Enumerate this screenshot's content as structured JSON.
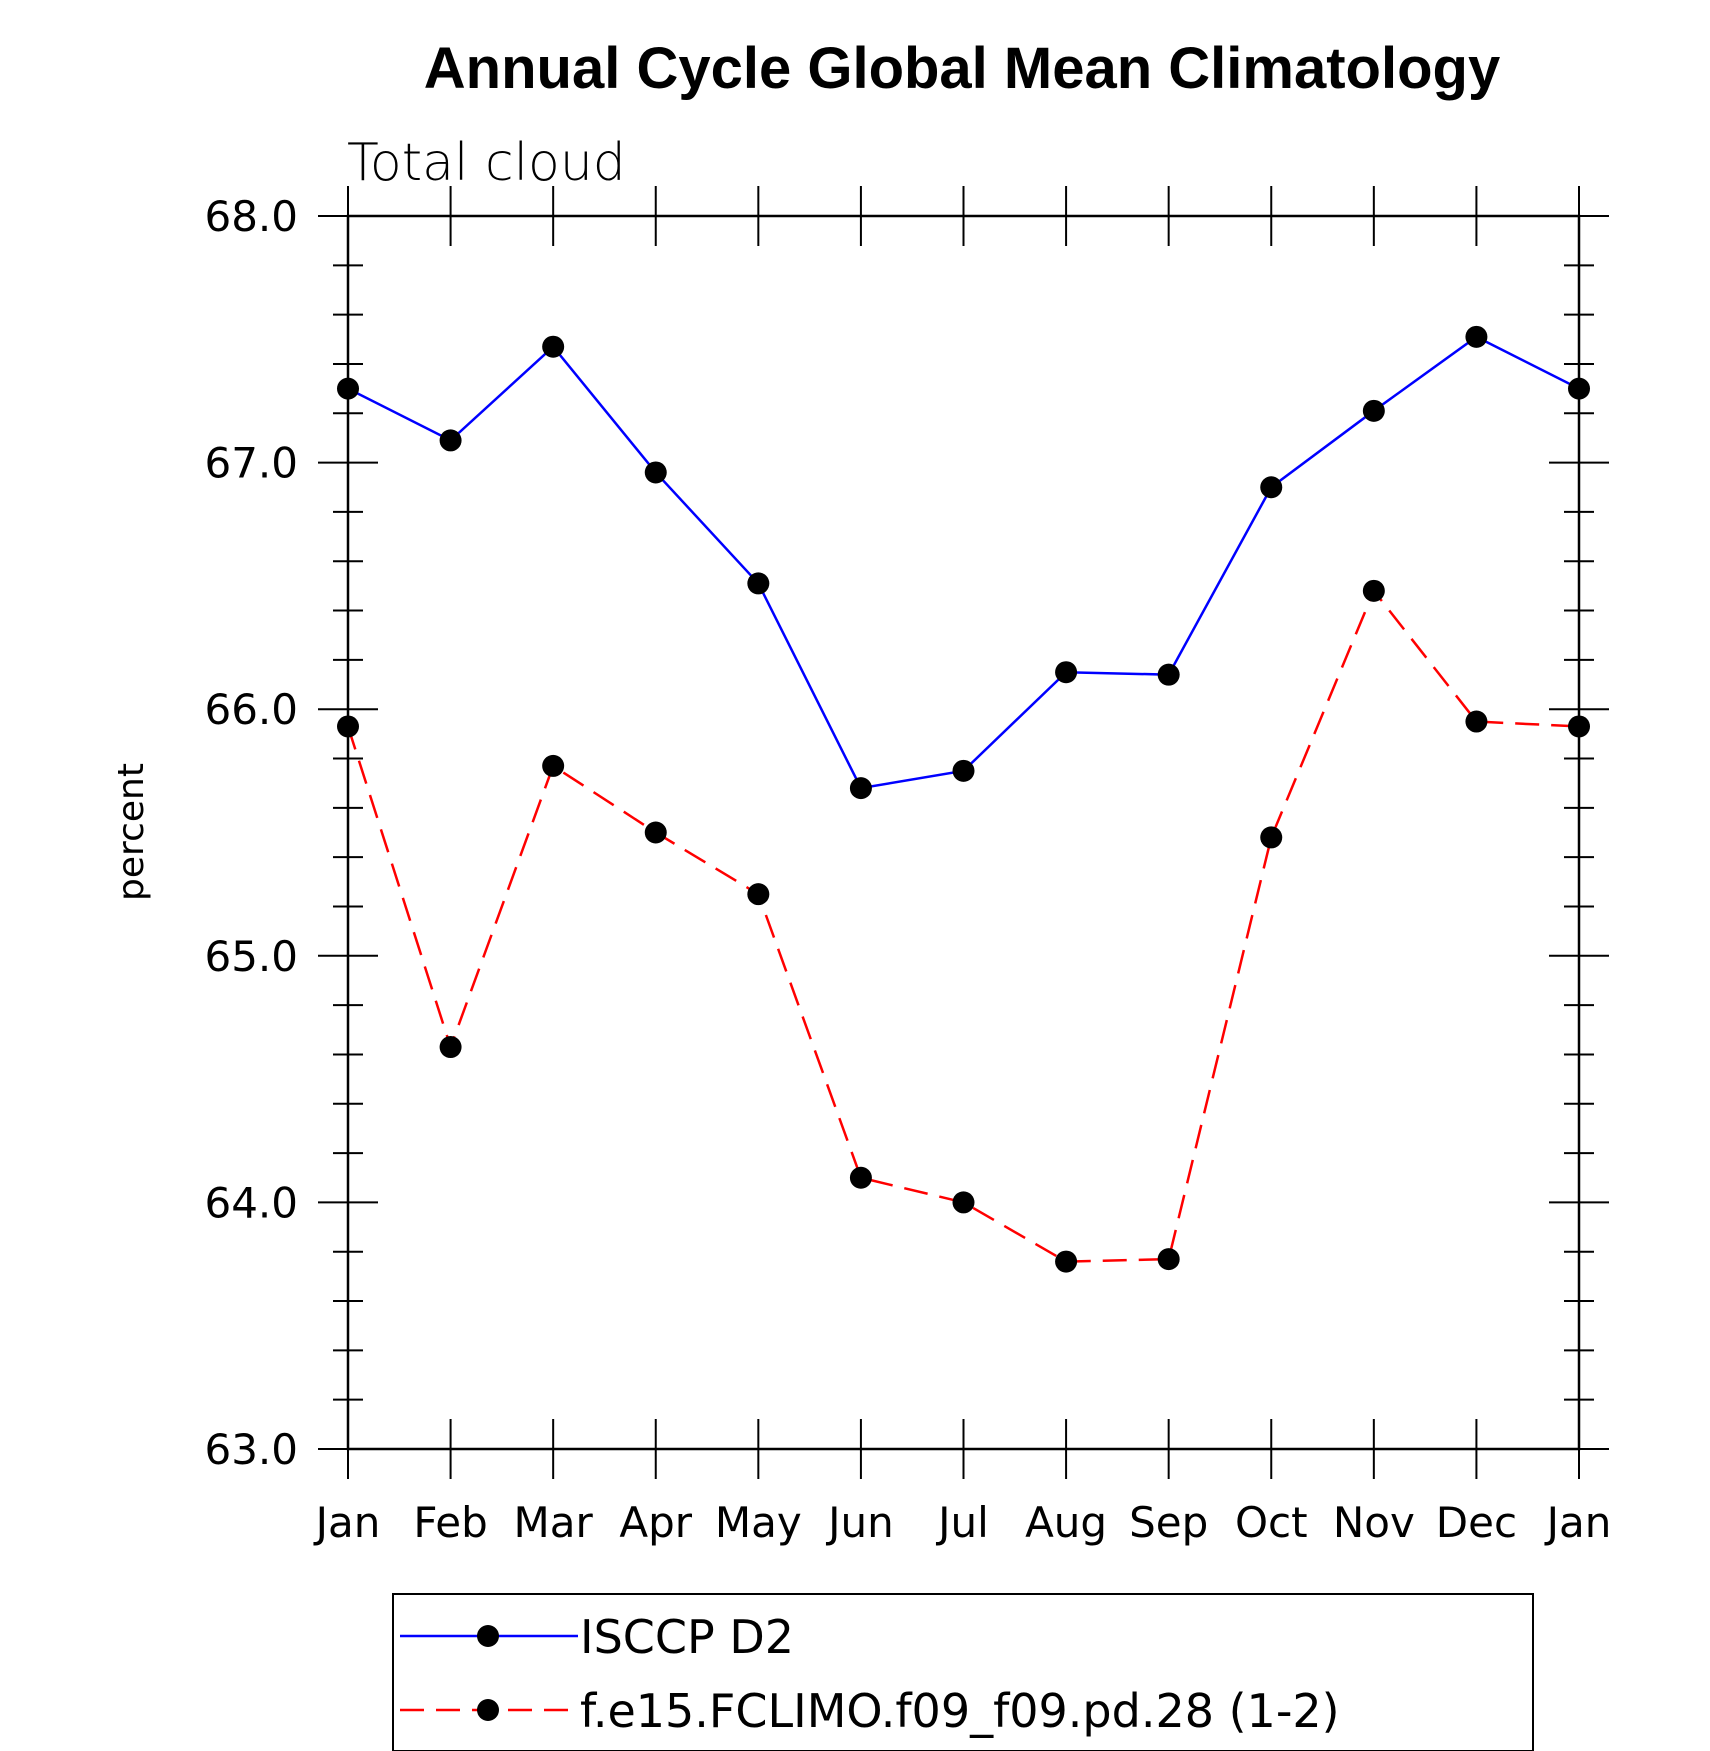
{
  "chart_data": {
    "type": "line",
    "title": "Annual Cycle Global Mean Climatology",
    "subtitle": "Total cloud",
    "xlabel": "",
    "ylabel": "percent",
    "categories": [
      "Jan",
      "Feb",
      "Mar",
      "Apr",
      "May",
      "Jun",
      "Jul",
      "Aug",
      "Sep",
      "Oct",
      "Nov",
      "Dec",
      "Jan"
    ],
    "ylim": [
      63.0,
      68.0
    ],
    "yticks": [
      "63.0",
      "64.0",
      "65.0",
      "66.0",
      "67.0",
      "68.0"
    ],
    "grid": false,
    "legend_position": "bottom",
    "series": [
      {
        "name": "ISCCP D2",
        "color": "#0000ff",
        "dash": "solid",
        "values": [
          67.3,
          67.09,
          67.47,
          66.96,
          66.51,
          65.68,
          65.75,
          66.15,
          66.14,
          66.9,
          67.21,
          67.51,
          67.3
        ]
      },
      {
        "name": "f.e15.FCLIMO.f09_f09.pd.28 (1-2)",
        "color": "#ff0000",
        "dash": "dashed",
        "values": [
          65.93,
          64.63,
          65.77,
          65.5,
          65.25,
          64.1,
          64.0,
          63.76,
          63.77,
          65.48,
          66.48,
          65.95,
          65.93
        ]
      }
    ]
  }
}
